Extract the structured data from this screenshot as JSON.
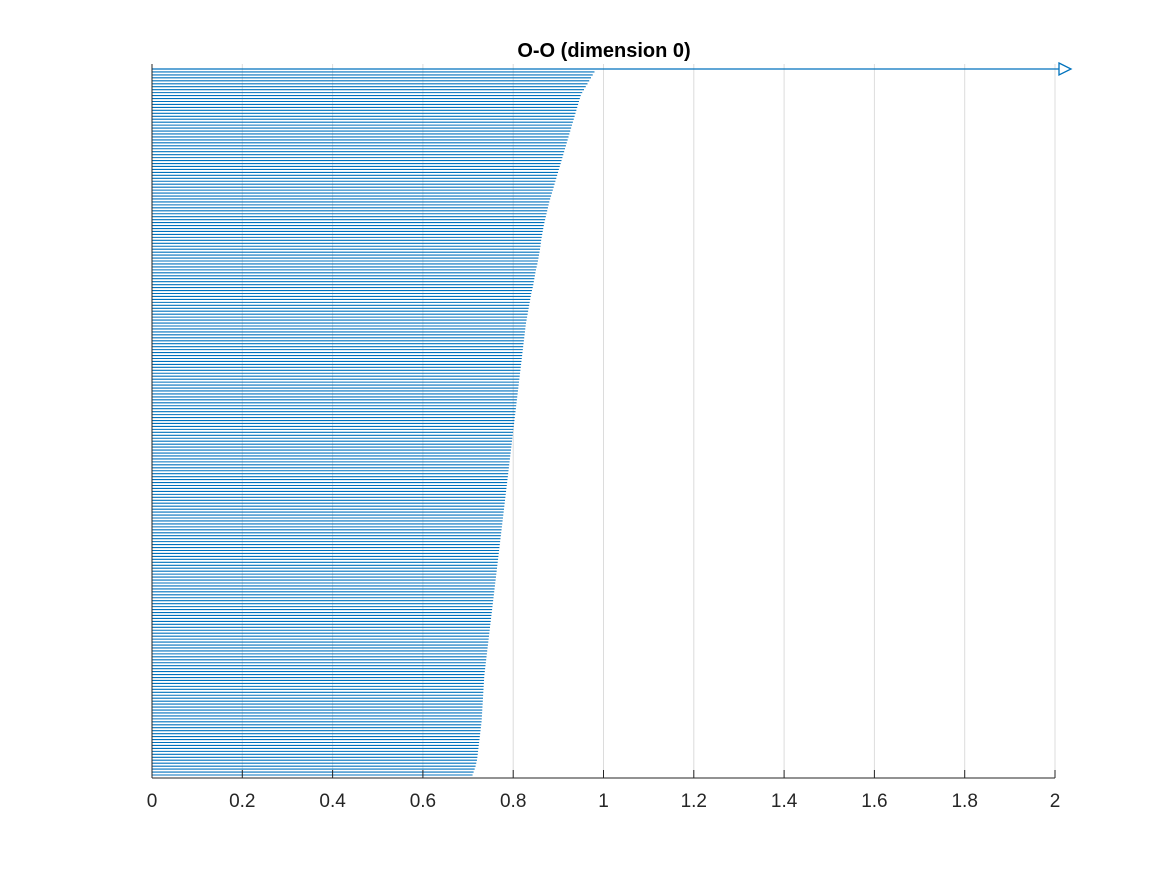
{
  "chart_data": {
    "type": "barcode",
    "title": "O-O (dimension 0)",
    "xlabel": "",
    "ylabel": "",
    "xlim": [
      0,
      2
    ],
    "xticks": [
      0,
      0.2,
      0.4,
      0.6,
      0.8,
      1,
      1.2,
      1.4,
      1.6,
      1.8,
      2
    ],
    "xtick_labels": [
      "0",
      "0.2",
      "0.4",
      "0.6",
      "0.8",
      "1",
      "1.2",
      "1.4",
      "1.6",
      "1.8",
      "2"
    ],
    "grid": "x-major",
    "bar_color": "#0072BD",
    "infinite_bars": [
      {
        "birth": 0,
        "death": "Infinity",
        "marker": "open-triangle-right"
      }
    ],
    "finite_bars_birth": 0,
    "finite_bars_death_desc": [
      0.98,
      0.97,
      0.96,
      0.95,
      0.945,
      0.94,
      0.935,
      0.93,
      0.925,
      0.92,
      0.915,
      0.91,
      0.905,
      0.9,
      0.895,
      0.89,
      0.885,
      0.88,
      0.876,
      0.872,
      0.868,
      0.865,
      0.862,
      0.86,
      0.857,
      0.854,
      0.85,
      0.847,
      0.844,
      0.84,
      0.837,
      0.834,
      0.831,
      0.828,
      0.826,
      0.824,
      0.822,
      0.82,
      0.818,
      0.816,
      0.814,
      0.812,
      0.81,
      0.808,
      0.806,
      0.804,
      0.802,
      0.8,
      0.798,
      0.796,
      0.794,
      0.792,
      0.79,
      0.788,
      0.786,
      0.784,
      0.782,
      0.78,
      0.778,
      0.776,
      0.774,
      0.772,
      0.77,
      0.768,
      0.766,
      0.764,
      0.762,
      0.76,
      0.758,
      0.756,
      0.754,
      0.752,
      0.75,
      0.748,
      0.746,
      0.744,
      0.742,
      0.74,
      0.738,
      0.736,
      0.735,
      0.734,
      0.733,
      0.732,
      0.731,
      0.73,
      0.728,
      0.726,
      0.724,
      0.722,
      0.72,
      0.716,
      0.71
    ]
  }
}
